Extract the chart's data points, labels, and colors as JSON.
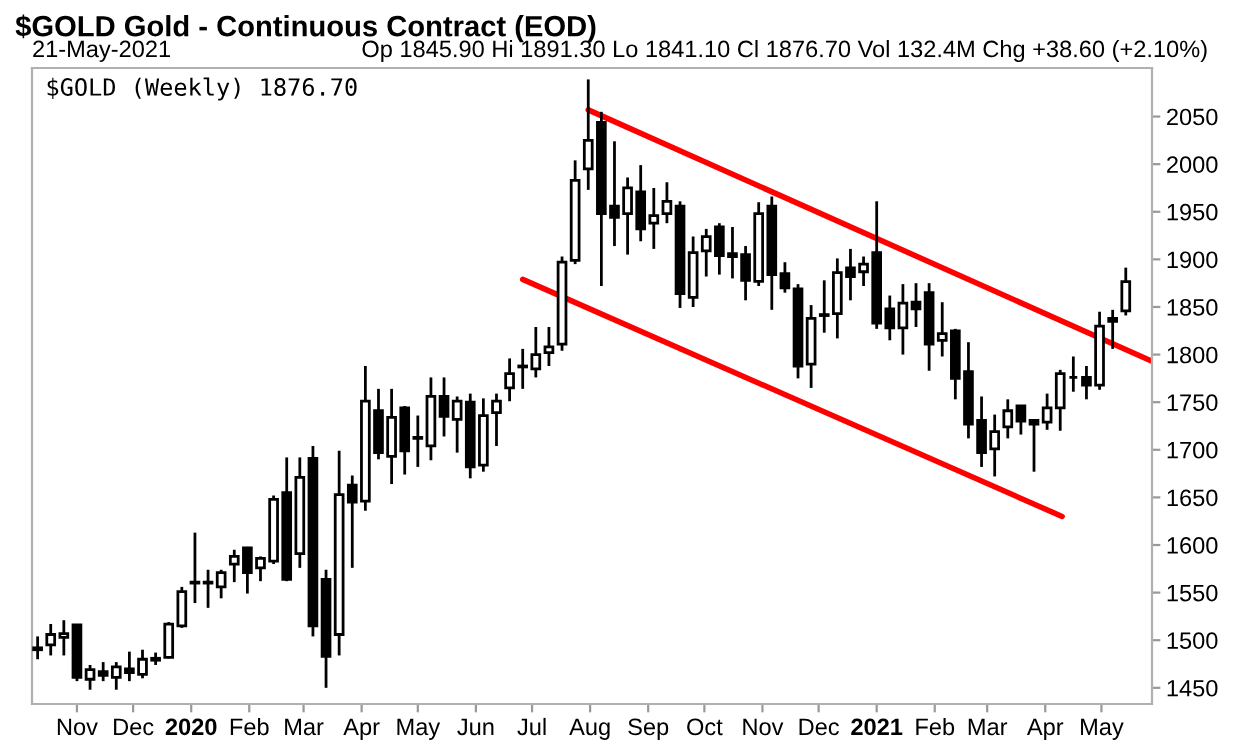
{
  "chart_data": {
    "type": "candlestick",
    "title": "$GOLD Gold - Continuous Contract (EOD)",
    "subtitle": "21-May-2021",
    "annotations": [
      "Op 1845.90 Hi 1891.30 Lo 1841.10 Cl 1876.70 Vol 132.4M Chg +38.60 (+2.10%)",
      "$GOLD (Weekly) 1876.70"
    ],
    "x": [
      "2019-10-11",
      "2019-10-18",
      "2019-10-25",
      "2019-11-01",
      "2019-11-08",
      "2019-11-15",
      "2019-11-22",
      "2019-11-29",
      "2019-12-06",
      "2019-12-13",
      "2019-12-20",
      "2019-12-27",
      "2020-01-03",
      "2020-01-10",
      "2020-01-17",
      "2020-01-24",
      "2020-01-31",
      "2020-02-07",
      "2020-02-14",
      "2020-02-21",
      "2020-02-28",
      "2020-03-06",
      "2020-03-13",
      "2020-03-20",
      "2020-03-27",
      "2020-04-03",
      "2020-04-10",
      "2020-04-17",
      "2020-04-24",
      "2020-05-01",
      "2020-05-08",
      "2020-05-15",
      "2020-05-22",
      "2020-05-29",
      "2020-06-05",
      "2020-06-12",
      "2020-06-19",
      "2020-06-26",
      "2020-07-03",
      "2020-07-10",
      "2020-07-17",
      "2020-07-24",
      "2020-07-31",
      "2020-08-07",
      "2020-08-14",
      "2020-08-21",
      "2020-08-28",
      "2020-09-04",
      "2020-09-11",
      "2020-09-18",
      "2020-09-25",
      "2020-10-02",
      "2020-10-09",
      "2020-10-16",
      "2020-10-23",
      "2020-10-30",
      "2020-11-06",
      "2020-11-13",
      "2020-11-20",
      "2020-11-27",
      "2020-12-04",
      "2020-12-11",
      "2020-12-18",
      "2020-12-25",
      "2021-01-01",
      "2021-01-08",
      "2021-01-15",
      "2021-01-22",
      "2021-01-29",
      "2021-02-05",
      "2021-02-12",
      "2021-02-19",
      "2021-02-26",
      "2021-03-05",
      "2021-03-12",
      "2021-03-19",
      "2021-03-26",
      "2021-04-02",
      "2021-04-09",
      "2021-04-16",
      "2021-04-23",
      "2021-04-30",
      "2021-05-07",
      "2021-05-14"
    ],
    "ohlc": [
      [
        1490,
        1504,
        1480,
        1492
      ],
      [
        1495,
        1517,
        1484,
        1506
      ],
      [
        1503,
        1521,
        1484,
        1507
      ],
      [
        1516,
        1517,
        1457,
        1461
      ],
      [
        1459,
        1474,
        1448,
        1469
      ],
      [
        1467,
        1477,
        1457,
        1463
      ],
      [
        1461,
        1477,
        1448,
        1472
      ],
      [
        1470,
        1488,
        1457,
        1466
      ],
      [
        1464,
        1490,
        1460,
        1480
      ],
      [
        1479,
        1487,
        1474,
        1481
      ],
      [
        1482,
        1519,
        1481,
        1517
      ],
      [
        1515,
        1556,
        1513,
        1551
      ],
      [
        1560,
        1613,
        1539,
        1561
      ],
      [
        1561,
        1574,
        1534,
        1560
      ],
      [
        1556,
        1574,
        1544,
        1571
      ],
      [
        1580,
        1595,
        1561,
        1588
      ],
      [
        1597,
        1598,
        1549,
        1571
      ],
      [
        1576,
        1588,
        1562,
        1586
      ],
      [
        1583,
        1652,
        1580,
        1648
      ],
      [
        1655,
        1692,
        1562,
        1564
      ],
      [
        1591,
        1692,
        1576,
        1671
      ],
      [
        1691,
        1704,
        1504,
        1515
      ],
      [
        1564,
        1574,
        1450,
        1483
      ],
      [
        1506,
        1699,
        1484,
        1653
      ],
      [
        1663,
        1673,
        1576,
        1645
      ],
      [
        1646,
        1788,
        1636,
        1751
      ],
      [
        1741,
        1764,
        1690,
        1697
      ],
      [
        1693,
        1764,
        1664,
        1734
      ],
      [
        1744,
        1746,
        1674,
        1699
      ],
      [
        1713,
        1736,
        1682,
        1712
      ],
      [
        1704,
        1776,
        1689,
        1756
      ],
      [
        1756,
        1776,
        1714,
        1735
      ],
      [
        1732,
        1756,
        1697,
        1751
      ],
      [
        1750,
        1759,
        1670,
        1682
      ],
      [
        1684,
        1754,
        1677,
        1736
      ],
      [
        1739,
        1759,
        1704,
        1751
      ],
      [
        1765,
        1796,
        1751,
        1780
      ],
      [
        1787,
        1806,
        1764,
        1788
      ],
      [
        1785,
        1829,
        1776,
        1800
      ],
      [
        1802,
        1829,
        1788,
        1808
      ],
      [
        1811,
        1903,
        1804,
        1897
      ],
      [
        1899,
        2004,
        1895,
        1983
      ],
      [
        1995,
        2089,
        1973,
        2025
      ],
      [
        2044,
        2055,
        1872,
        1948
      ],
      [
        1956,
        2024,
        1914,
        1944
      ],
      [
        1948,
        1986,
        1905,
        1975
      ],
      [
        1971,
        1999,
        1919,
        1932
      ],
      [
        1938,
        1975,
        1911,
        1946
      ],
      [
        1948,
        1981,
        1938,
        1961
      ],
      [
        1956,
        1961,
        1849,
        1864
      ],
      [
        1860,
        1924,
        1850,
        1907
      ],
      [
        1909,
        1932,
        1882,
        1924
      ],
      [
        1934,
        1938,
        1884,
        1904
      ],
      [
        1906,
        1934,
        1880,
        1903
      ],
      [
        1905,
        1914,
        1857,
        1878
      ],
      [
        1877,
        1960,
        1872,
        1948
      ],
      [
        1956,
        1966,
        1847,
        1884
      ],
      [
        1885,
        1897,
        1865,
        1870
      ],
      [
        1869,
        1874,
        1775,
        1788
      ],
      [
        1790,
        1852,
        1765,
        1838
      ],
      [
        1841,
        1878,
        1823,
        1842
      ],
      [
        1843,
        1901,
        1817,
        1886
      ],
      [
        1891,
        1911,
        1857,
        1882
      ],
      [
        1887,
        1903,
        1872,
        1895
      ],
      [
        1907,
        1961,
        1827,
        1833
      ],
      [
        1848,
        1862,
        1815,
        1828
      ],
      [
        1828,
        1874,
        1800,
        1854
      ],
      [
        1855,
        1875,
        1829,
        1848
      ],
      [
        1865,
        1875,
        1783,
        1811
      ],
      [
        1815,
        1855,
        1798,
        1822
      ],
      [
        1825,
        1827,
        1753,
        1775
      ],
      [
        1782,
        1813,
        1712,
        1727
      ],
      [
        1731,
        1756,
        1682,
        1697
      ],
      [
        1701,
        1737,
        1672,
        1719
      ],
      [
        1724,
        1753,
        1712,
        1741
      ],
      [
        1746,
        1746,
        1716,
        1730
      ],
      [
        1731,
        1732,
        1677,
        1727
      ],
      [
        1729,
        1759,
        1721,
        1744
      ],
      [
        1744,
        1784,
        1720,
        1780
      ],
      [
        1776,
        1798,
        1761,
        1776
      ],
      [
        1776,
        1788,
        1753,
        1768
      ],
      [
        1768,
        1845,
        1763,
        1830
      ],
      [
        1835,
        1847,
        1806,
        1838.1
      ],
      [
        1845.9,
        1891.3,
        1841.1,
        1876.7
      ]
    ],
    "series": [
      {
        "type": "line",
        "color": "#ff0000",
        "x": [
          "2020-07-31",
          "2021-05-28"
        ],
        "values": [
          2057,
          1793
        ]
      },
      {
        "type": "line",
        "color": "#ff0000",
        "x": [
          "2020-06-26",
          "2021-04-10"
        ],
        "values": [
          1879,
          1630
        ]
      }
    ],
    "xlim": [
      "2019-10-08",
      "2021-05-28"
    ],
    "xticks": [
      {
        "value": "2019-11-01",
        "label": "Nov"
      },
      {
        "value": "2019-12-01",
        "label": "Dec"
      },
      {
        "value": "2020-01-01",
        "label": "2020"
      },
      {
        "value": "2020-02-01",
        "label": "Feb"
      },
      {
        "value": "2020-03-01",
        "label": "Mar"
      },
      {
        "value": "2020-04-01",
        "label": "Apr"
      },
      {
        "value": "2020-05-01",
        "label": "May"
      },
      {
        "value": "2020-06-01",
        "label": "Jun"
      },
      {
        "value": "2020-07-01",
        "label": "Jul"
      },
      {
        "value": "2020-08-01",
        "label": "Aug"
      },
      {
        "value": "2020-09-01",
        "label": "Sep"
      },
      {
        "value": "2020-10-01",
        "label": "Oct"
      },
      {
        "value": "2020-11-01",
        "label": "Nov"
      },
      {
        "value": "2020-12-01",
        "label": "Dec"
      },
      {
        "value": "2021-01-01",
        "label": "2021"
      },
      {
        "value": "2021-02-01",
        "label": "Feb"
      },
      {
        "value": "2021-03-01",
        "label": "Mar"
      },
      {
        "value": "2021-04-01",
        "label": "Apr"
      },
      {
        "value": "2021-05-01",
        "label": "May"
      }
    ],
    "ylim": [
      1433,
      2101
    ],
    "yticks": [
      1450,
      1500,
      1550,
      1600,
      1650,
      1700,
      1750,
      1800,
      1850,
      1900,
      1950,
      2000,
      2050
    ],
    "grid": false
  }
}
